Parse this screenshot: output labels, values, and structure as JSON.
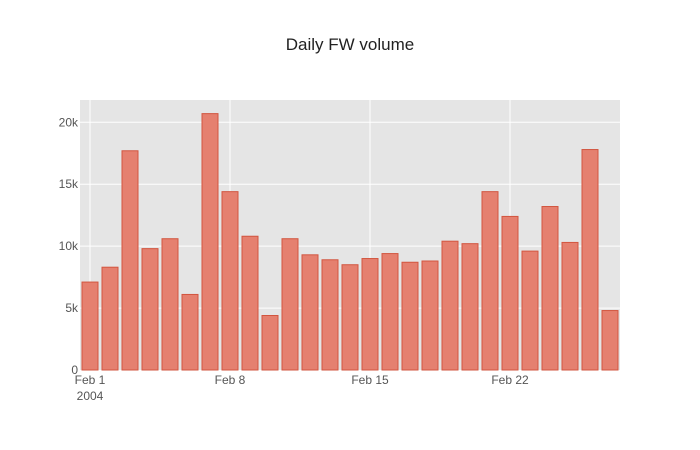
{
  "chart_data": {
    "type": "bar",
    "title": "Daily FW volume",
    "xlabel": "",
    "ylabel": "",
    "x": [
      "2004-02-01",
      "2004-02-02",
      "2004-02-03",
      "2004-02-04",
      "2004-02-05",
      "2004-02-06",
      "2004-02-07",
      "2004-02-08",
      "2004-02-09",
      "2004-02-10",
      "2004-02-11",
      "2004-02-12",
      "2004-02-13",
      "2004-02-14",
      "2004-02-15",
      "2004-02-16",
      "2004-02-17",
      "2004-02-18",
      "2004-02-19",
      "2004-02-20",
      "2004-02-21",
      "2004-02-22",
      "2004-02-23",
      "2004-02-24",
      "2004-02-25",
      "2004-02-26",
      "2004-02-27"
    ],
    "values": [
      7100,
      8300,
      17700,
      9800,
      10600,
      6100,
      20700,
      14400,
      10800,
      4400,
      10600,
      9300,
      8900,
      8500,
      9000,
      9400,
      8700,
      8800,
      10400,
      10200,
      14400,
      12400,
      9600,
      13200,
      10300,
      17800,
      4800
    ],
    "ylim": [
      0,
      21800
    ],
    "y_ticks": [
      {
        "value": 0,
        "label": "0"
      },
      {
        "value": 5000,
        "label": "5k"
      },
      {
        "value": 10000,
        "label": "10k"
      },
      {
        "value": 15000,
        "label": "15k"
      },
      {
        "value": 20000,
        "label": "20k"
      }
    ],
    "x_ticks": [
      {
        "date": "2004-02-01",
        "label": "Feb 1",
        "sublabel": "2004"
      },
      {
        "date": "2004-02-08",
        "label": "Feb 8",
        "sublabel": ""
      },
      {
        "date": "2004-02-15",
        "label": "Feb 15",
        "sublabel": ""
      },
      {
        "date": "2004-02-22",
        "label": "Feb 22",
        "sublabel": ""
      }
    ],
    "grid": true,
    "legend": "none",
    "colors": {
      "bar_fill": "#e5806f",
      "bar_stroke": "#d2553f",
      "plot_bg": "#e5e5e5",
      "grid": "#ffffff"
    }
  }
}
